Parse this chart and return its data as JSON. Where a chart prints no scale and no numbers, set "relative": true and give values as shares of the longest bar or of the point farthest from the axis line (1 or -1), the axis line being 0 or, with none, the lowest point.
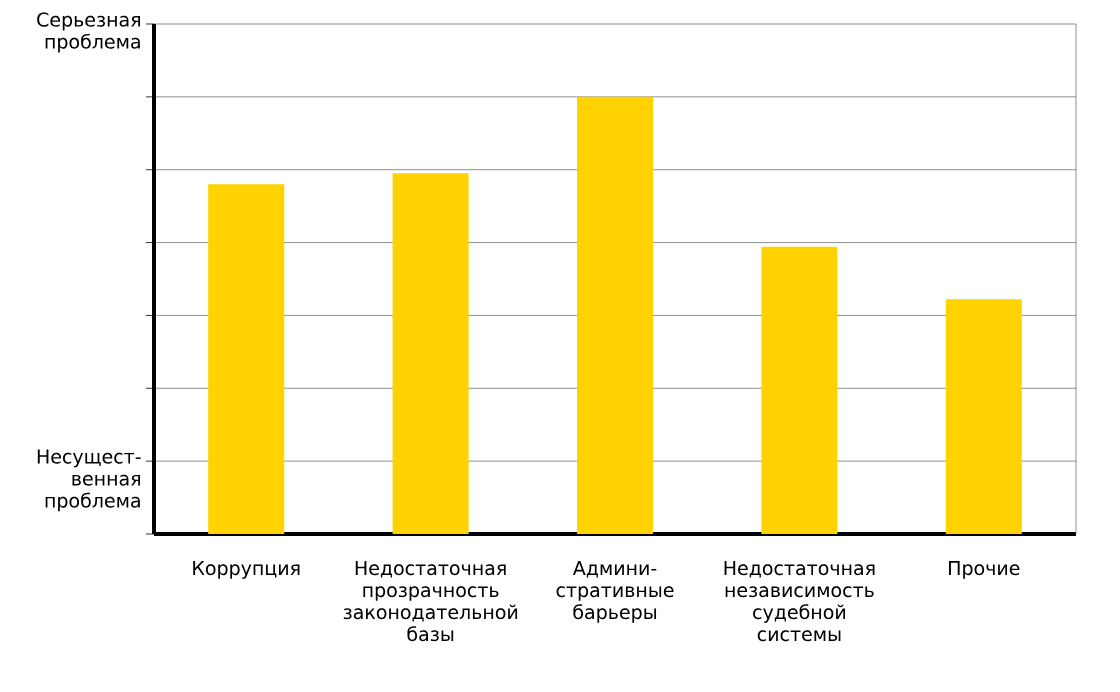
{
  "chart_data": {
    "type": "bar",
    "categories": [
      "Коррупция",
      "Недостаточная прозрачность законодательной базы",
      "Админи-стративные барьеры",
      "Недостаточная независимость судебной системы",
      "Прочие"
    ],
    "values": [
      0.8,
      0.825,
      1,
      0.657,
      0.537
    ],
    "relative": true,
    "color": "#ffd200",
    "annotations": [
      "Серьезная проблема",
      "Несущест-венная проблема"
    ],
    "grid": "y"
  }
}
